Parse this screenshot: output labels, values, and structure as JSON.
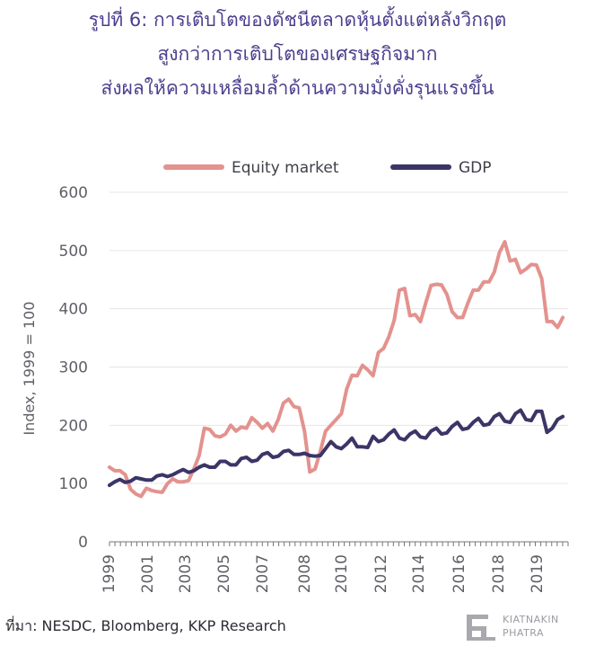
{
  "title_lines": [
    "รูปที่ 6: การเติบโตของดัชนีตลาดหุ้นตั้งแต่หลังวิกฤต",
    "สูงกว่าการเติบโตของเศรษฐกิจมาก",
    "ส่งผลให้ความเหลื่อมล้ำด้านความมั่งคั่งรุนแรงขึ้น"
  ],
  "source": "ที่มา: NESDC, Bloomberg, KKP Research",
  "logo": {
    "line1": "KIATNAKIN",
    "line2": "PHATRA"
  },
  "colors": {
    "equity": "#e3928e",
    "gdp": "#3b3567",
    "title": "#4a3f8e",
    "grid": "#e6e6e6",
    "axis": "#777777"
  },
  "chart_data": {
    "type": "line",
    "ylabel": "Index, 1999 = 100",
    "ylim": [
      0,
      600
    ],
    "yticks": [
      0,
      100,
      200,
      300,
      400,
      500,
      600
    ],
    "xlim": [
      1999.0,
      2020.75
    ],
    "xticks": [
      "1999",
      "2001",
      "2003",
      "2005",
      "2007",
      "2008",
      "2010",
      "2012",
      "2014",
      "2016",
      "2018",
      "2019"
    ],
    "legend_position": "top",
    "grid": "horizontal",
    "series": [
      {
        "name": "Equity market",
        "x": [
          1999.0,
          1999.25,
          1999.5,
          1999.75,
          2000.0,
          2000.25,
          2000.5,
          2000.75,
          2001.0,
          2001.25,
          2001.5,
          2001.75,
          2002.0,
          2002.25,
          2002.5,
          2002.75,
          2003.0,
          2003.25,
          2003.5,
          2003.75,
          2004.0,
          2004.25,
          2004.5,
          2004.75,
          2005.0,
          2005.25,
          2005.5,
          2005.75,
          2006.0,
          2006.25,
          2006.5,
          2006.75,
          2007.0,
          2007.25,
          2007.5,
          2007.75,
          2008.0,
          2008.25,
          2008.5,
          2008.75,
          2009.0,
          2009.25,
          2009.5,
          2009.75,
          2010.0,
          2010.25,
          2010.5,
          2010.75,
          2011.0,
          2011.25,
          2011.5,
          2011.75,
          2012.0,
          2012.25,
          2012.5,
          2012.75,
          2013.0,
          2013.25,
          2013.5,
          2013.75,
          2014.0,
          2014.25,
          2014.5,
          2014.75,
          2015.0,
          2015.25,
          2015.5,
          2015.75,
          2016.0,
          2016.25,
          2016.5,
          2016.75,
          2017.0,
          2017.25,
          2017.5,
          2017.75,
          2018.0,
          2018.25,
          2018.5,
          2018.75,
          2019.0,
          2019.25,
          2019.5,
          2019.75,
          2020.0,
          2020.25,
          2020.5
        ],
        "values": [
          128,
          122,
          122,
          115,
          90,
          82,
          78,
          92,
          88,
          86,
          85,
          100,
          108,
          103,
          103,
          105,
          125,
          148,
          195,
          193,
          182,
          180,
          185,
          200,
          190,
          197,
          195,
          213,
          205,
          195,
          203,
          190,
          210,
          238,
          245,
          232,
          230,
          190,
          120,
          125,
          155,
          190,
          200,
          210,
          220,
          262,
          286,
          285,
          303,
          295,
          285,
          325,
          332,
          352,
          380,
          432,
          435,
          388,
          390,
          378,
          410,
          440,
          442,
          441,
          425,
          395,
          385,
          385,
          410,
          432,
          432,
          446,
          446,
          463,
          497,
          515,
          482,
          485,
          462,
          468,
          476,
          475,
          452,
          378,
          378,
          368,
          385
        ]
      },
      {
        "name": "GDP",
        "x": [
          1999.0,
          1999.25,
          1999.5,
          1999.75,
          2000.0,
          2000.25,
          2000.5,
          2000.75,
          2001.0,
          2001.25,
          2001.5,
          2001.75,
          2002.0,
          2002.25,
          2002.5,
          2002.75,
          2003.0,
          2003.25,
          2003.5,
          2003.75,
          2004.0,
          2004.25,
          2004.5,
          2004.75,
          2005.0,
          2005.25,
          2005.5,
          2005.75,
          2006.0,
          2006.25,
          2006.5,
          2006.75,
          2007.0,
          2007.25,
          2007.5,
          2007.75,
          2008.0,
          2008.25,
          2008.5,
          2008.75,
          2009.0,
          2009.25,
          2009.5,
          2009.75,
          2010.0,
          2010.25,
          2010.5,
          2010.75,
          2011.0,
          2011.25,
          2011.5,
          2011.75,
          2012.0,
          2012.25,
          2012.5,
          2012.75,
          2013.0,
          2013.25,
          2013.5,
          2013.75,
          2014.0,
          2014.25,
          2014.5,
          2014.75,
          2015.0,
          2015.25,
          2015.5,
          2015.75,
          2016.0,
          2016.25,
          2016.5,
          2016.75,
          2017.0,
          2017.25,
          2017.5,
          2017.75,
          2018.0,
          2018.25,
          2018.5,
          2018.75,
          2019.0,
          2019.25,
          2019.5,
          2019.75,
          2020.0,
          2020.25,
          2020.5
        ],
        "values": [
          97,
          103,
          107,
          102,
          104,
          110,
          108,
          106,
          106,
          113,
          115,
          112,
          115,
          120,
          124,
          119,
          122,
          128,
          132,
          128,
          128,
          138,
          138,
          132,
          132,
          143,
          145,
          138,
          140,
          150,
          153,
          145,
          147,
          155,
          157,
          150,
          150,
          152,
          148,
          147,
          148,
          160,
          172,
          163,
          160,
          168,
          178,
          163,
          163,
          162,
          181,
          172,
          175,
          185,
          192,
          178,
          175,
          185,
          190,
          180,
          178,
          190,
          195,
          185,
          187,
          198,
          205,
          193,
          195,
          205,
          212,
          200,
          202,
          215,
          220,
          207,
          205,
          220,
          226,
          210,
          208,
          224,
          224,
          188,
          195,
          210,
          215
        ]
      }
    ]
  }
}
